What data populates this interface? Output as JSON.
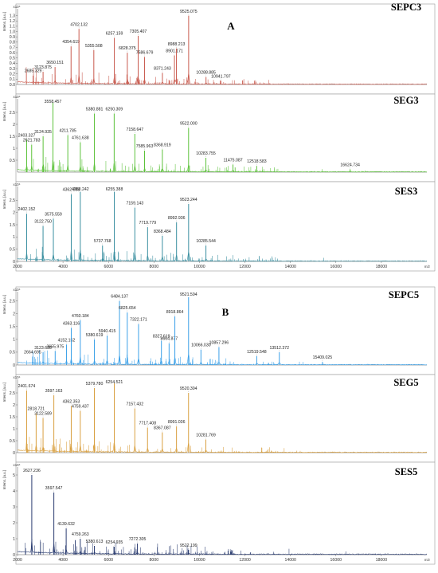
{
  "figure": {
    "group_labels": [
      "A",
      "B"
    ],
    "xlabel": "m/z",
    "ylabel": "Intens. [a.u.]",
    "y_multiplier": "x10⁴",
    "x_ticks": [
      2000,
      4000,
      6000,
      8000,
      10000,
      12000,
      14000,
      16000,
      18000
    ]
  },
  "chart_data": [
    {
      "type": "line",
      "title": "SEPC3",
      "group": "A",
      "color": "#c95a4e",
      "xlim": [
        2000,
        20000
      ],
      "ylim": [
        0,
        1.4
      ],
      "yticks": [
        0.0,
        0.1,
        0.2,
        0.3,
        0.4,
        0.5,
        0.6,
        0.7,
        0.8,
        0.9,
        1.0,
        1.1,
        1.2,
        1.3
      ],
      "peaks": [
        {
          "mz": 2685.329,
          "label": "2685.329",
          "intensity": 0.17
        },
        {
          "mz": 3123.875,
          "label": "3123.875",
          "intensity": 0.24
        },
        {
          "mz": 3650.151,
          "label": "3650.151",
          "intensity": 0.33
        },
        {
          "mz": 4354.619,
          "label": "4354.619",
          "intensity": 0.72
        },
        {
          "mz": 4702.132,
          "label": "4702.132",
          "intensity": 1.05
        },
        {
          "mz": 5355.508,
          "label": "5355.508",
          "intensity": 0.65
        },
        {
          "mz": 6257.159,
          "label": "6257.159",
          "intensity": 0.88
        },
        {
          "mz": 6828.375,
          "label": "6828.375",
          "intensity": 0.6
        },
        {
          "mz": 7305.407,
          "label": "7305.407",
          "intensity": 0.92
        },
        {
          "mz": 7586.679,
          "label": "7586.679",
          "intensity": 0.52
        },
        {
          "mz": 8371.243,
          "label": "8371.243",
          "intensity": 0.22
        },
        {
          "mz": 8901.171,
          "label": "8901.171",
          "intensity": 0.55
        },
        {
          "mz": 8988.213,
          "label": "8988.213",
          "intensity": 0.68
        },
        {
          "mz": 9525.075,
          "label": "9525.075",
          "intensity": 1.3
        },
        {
          "mz": 10288.885,
          "label": "10288.885",
          "intensity": 0.14
        },
        {
          "mz": 10941.797,
          "label": "10941.797",
          "intensity": 0.07
        }
      ]
    },
    {
      "type": "line",
      "title": "SEG3",
      "group": "A",
      "color": "#5cc23a",
      "xlim": [
        2000,
        20000
      ],
      "ylim": [
        0,
        3.0
      ],
      "yticks": [
        0.5,
        1.0,
        1.5,
        2.0,
        2.5
      ],
      "peaks": [
        {
          "mz": 2403.327,
          "label": "2403.327",
          "intensity": 1.35
        },
        {
          "mz": 2621.783,
          "label": "2621.783",
          "intensity": 1.15
        },
        {
          "mz": 3124.935,
          "label": "3124.935",
          "intensity": 1.5
        },
        {
          "mz": 3558.457,
          "label": "3558.457",
          "intensity": 2.9
        },
        {
          "mz": 4211.785,
          "label": "4211.785",
          "intensity": 1.55
        },
        {
          "mz": 4761.638,
          "label": "4761.638",
          "intensity": 1.25
        },
        {
          "mz": 5380.881,
          "label": "5380.881",
          "intensity": 2.45
        },
        {
          "mz": 6250.309,
          "label": "6250.309",
          "intensity": 2.45
        },
        {
          "mz": 7158.647,
          "label": "7158.647",
          "intensity": 1.6
        },
        {
          "mz": 7585.963,
          "label": "7585.963",
          "intensity": 0.9
        },
        {
          "mz": 8368.919,
          "label": "8368.919",
          "intensity": 0.95
        },
        {
          "mz": 9522.0,
          "label": "9522.000",
          "intensity": 1.85
        },
        {
          "mz": 10283.755,
          "label": "10283.755",
          "intensity": 0.6
        },
        {
          "mz": 11475.087,
          "label": "11475.087",
          "intensity": 0.32
        },
        {
          "mz": 12518.583,
          "label": "12518.583",
          "intensity": 0.26
        },
        {
          "mz": 16624.734,
          "label": "16624.734",
          "intensity": 0.12
        }
      ]
    },
    {
      "type": "line",
      "title": "SES3",
      "group": "A",
      "color": "#3a8fa0",
      "xlim": [
        2000,
        20000
      ],
      "ylim": [
        0,
        3.0
      ],
      "yticks": [
        0.0,
        0.5,
        1.0,
        1.5,
        2.0,
        2.5
      ],
      "peaks": [
        {
          "mz": 2402.152,
          "label": "2402.152",
          "intensity": 1.95
        },
        {
          "mz": 3122.75,
          "label": "3122.750",
          "intensity": 1.45
        },
        {
          "mz": 3575.559,
          "label": "3575.559",
          "intensity": 1.75
        },
        {
          "mz": 4362.888,
          "label": "4362.888",
          "intensity": 2.75
        },
        {
          "mz": 4760.242,
          "label": "4760.242",
          "intensity": 2.85
        },
        {
          "mz": 5737.768,
          "label": "5737.768",
          "intensity": 0.65
        },
        {
          "mz": 6255.388,
          "label": "6255.388",
          "intensity": 2.85
        },
        {
          "mz": 7159.143,
          "label": "7159.143",
          "intensity": 2.2
        },
        {
          "mz": 7719.779,
          "label": "7719.779",
          "intensity": 1.4
        },
        {
          "mz": 8368.484,
          "label": "8368.484",
          "intensity": 1.05
        },
        {
          "mz": 8992.936,
          "label": "8992.936",
          "intensity": 1.6
        },
        {
          "mz": 9523.244,
          "label": "9523.244",
          "intensity": 2.35
        },
        {
          "mz": 10285.544,
          "label": "10285.544",
          "intensity": 0.65
        }
      ]
    },
    {
      "type": "line",
      "title": "SEPC5",
      "group": "B",
      "color": "#3aa0e8",
      "xlim": [
        2000,
        20000
      ],
      "ylim": [
        0,
        2.8
      ],
      "yticks": [
        0.0,
        0.5,
        1.0,
        1.5,
        2.0,
        2.5
      ],
      "peaks": [
        {
          "mz": 2664.695,
          "label": "2664.695",
          "intensity": 0.33
        },
        {
          "mz": 3123.63,
          "label": "3123.630",
          "intensity": 0.5
        },
        {
          "mz": 3655.975,
          "label": "3655.975",
          "intensity": 0.55
        },
        {
          "mz": 4152.152,
          "label": "4152.152",
          "intensity": 0.8
        },
        {
          "mz": 4363.116,
          "label": "4363.116",
          "intensity": 1.45
        },
        {
          "mz": 4760.184,
          "label": "4760.184",
          "intensity": 1.75
        },
        {
          "mz": 5380.619,
          "label": "5380.619",
          "intensity": 1.0
        },
        {
          "mz": 5940.415,
          "label": "5940.415",
          "intensity": 1.15
        },
        {
          "mz": 6484.137,
          "label": "6484.137",
          "intensity": 2.5
        },
        {
          "mz": 6825.654,
          "label": "6825.654",
          "intensity": 2.05
        },
        {
          "mz": 7322.171,
          "label": "7322.171",
          "intensity": 1.6
        },
        {
          "mz": 8327.619,
          "label": "8327.619",
          "intensity": 0.95
        },
        {
          "mz": 8664.877,
          "label": "8664.877",
          "intensity": 0.85
        },
        {
          "mz": 8918.864,
          "label": "8918.864",
          "intensity": 1.9
        },
        {
          "mz": 9521.594,
          "label": "9521.594",
          "intensity": 2.65
        },
        {
          "mz": 10066.03,
          "label": "10066.030",
          "intensity": 0.6
        },
        {
          "mz": 10857.296,
          "label": "10857.296",
          "intensity": 0.7
        },
        {
          "mz": 12519.548,
          "label": "12519.548",
          "intensity": 0.35
        },
        {
          "mz": 13512.372,
          "label": "13512.372",
          "intensity": 0.5
        },
        {
          "mz": 15409.025,
          "label": "15409.025",
          "intensity": 0.12
        }
      ]
    },
    {
      "type": "line",
      "title": "SEG5",
      "group": "B",
      "color": "#d9a040",
      "xlim": [
        2000,
        20000
      ],
      "ylim": [
        0,
        3.0
      ],
      "yticks": [
        0.0,
        0.5,
        1.0,
        1.5,
        2.0,
        2.5
      ],
      "peaks": [
        {
          "mz": 2401.674,
          "label": "2401.674",
          "intensity": 2.6
        },
        {
          "mz": 2818.721,
          "label": "2818.721",
          "intensity": 1.65
        },
        {
          "mz": 3122.589,
          "label": "3122.589",
          "intensity": 1.45
        },
        {
          "mz": 3597.163,
          "label": "3597.163",
          "intensity": 2.4
        },
        {
          "mz": 4362.353,
          "label": "4362.353",
          "intensity": 1.95
        },
        {
          "mz": 4759.437,
          "label": "4759.437",
          "intensity": 1.75
        },
        {
          "mz": 5379.78,
          "label": "5379.780",
          "intensity": 2.7
        },
        {
          "mz": 6254.521,
          "label": "6254.521",
          "intensity": 2.9
        },
        {
          "mz": 7157.432,
          "label": "7157.432",
          "intensity": 1.85
        },
        {
          "mz": 7717.408,
          "label": "7717.408",
          "intensity": 1.05
        },
        {
          "mz": 8367.087,
          "label": "8367.087",
          "intensity": 0.85
        },
        {
          "mz": 8991.036,
          "label": "8991.036",
          "intensity": 1.1
        },
        {
          "mz": 9520.304,
          "label": "9520.304",
          "intensity": 2.5
        },
        {
          "mz": 10281.769,
          "label": "10281.769",
          "intensity": 0.55
        }
      ]
    },
    {
      "type": "line",
      "title": "SES5",
      "group": "B",
      "color": "#2a3c70",
      "xlim": [
        2000,
        20000
      ],
      "ylim": [
        0,
        5.4
      ],
      "yticks": [
        0,
        1,
        2,
        3,
        4,
        5
      ],
      "peaks": [
        {
          "mz": 2627.236,
          "label": "2627.236",
          "intensity": 5.0
        },
        {
          "mz": 3597.547,
          "label": "3597.547",
          "intensity": 3.9
        },
        {
          "mz": 4139.632,
          "label": "4139.632",
          "intensity": 1.65
        },
        {
          "mz": 4759.263,
          "label": "4759.263",
          "intensity": 1.0
        },
        {
          "mz": 5380.613,
          "label": "5380.613",
          "intensity": 0.55
        },
        {
          "mz": 6254.935,
          "label": "6254.935",
          "intensity": 0.5
        },
        {
          "mz": 7272.305,
          "label": "7272.305",
          "intensity": 0.7
        },
        {
          "mz": 9522.199,
          "label": "9522.199",
          "intensity": 0.3
        }
      ]
    }
  ]
}
